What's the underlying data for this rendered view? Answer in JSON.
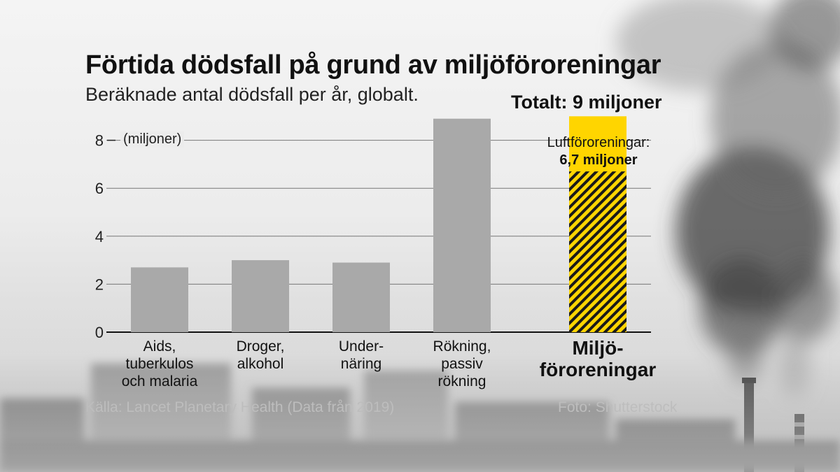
{
  "header": {
    "title": "Förtida dödsfall på grund av miljöföroreningar",
    "subtitle": "Beräknade antal dödsfall per år, globalt."
  },
  "annotations": {
    "total": "Totalt: 9 miljoner",
    "unit": "(miljoner)",
    "air_label": "Luftföroreningar:",
    "air_value": "6,7 miljoner"
  },
  "footer": {
    "source": "Källa: Lancet Planetary Health (Data från 2019)",
    "photo": "Foto: Shutterstock"
  },
  "colors": {
    "bar_gray": "#a9a9a9",
    "highlight_yellow": "#ffd500",
    "hatch_dark": "#1a1a1a",
    "gridline": "#777777",
    "text_dark": "#111111"
  },
  "chart_data": {
    "type": "bar",
    "categories": [
      [
        "Aids,",
        "tuberkulos",
        "och malaria"
      ],
      [
        "Droger,",
        "alkohol"
      ],
      [
        "Under-",
        "näring"
      ],
      [
        "Rökning,",
        "passiv",
        "rökning"
      ],
      [
        "Miljö-",
        "föroreningar"
      ]
    ],
    "values": [
      2.7,
      3.0,
      2.9,
      8.9,
      9.0
    ],
    "highlight_index": 4,
    "highlight_subvalue": 6.7,
    "ylim": [
      0,
      9
    ],
    "yticks": [
      0,
      2,
      4,
      6,
      8
    ],
    "grid": true,
    "legend": "none"
  }
}
